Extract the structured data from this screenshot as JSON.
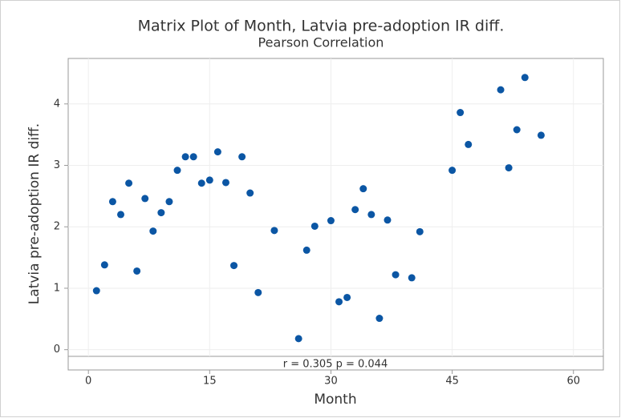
{
  "chart_data": {
    "type": "scatter",
    "title": "Matrix Plot of Month, Latvia pre-adoption IR diff.",
    "subtitle": "Pearson Correlation",
    "x_label": "Month",
    "y_label": "Latvia pre-adoption IR diff.",
    "annotation": "r = 0.305  p = 0.044",
    "color": "#0b56a4",
    "grid": true,
    "x": [
      1,
      2,
      3,
      4,
      5,
      6,
      7,
      8,
      9,
      10,
      11,
      12,
      13,
      14,
      15,
      16,
      17,
      18,
      19,
      20,
      21,
      23,
      26,
      27,
      28,
      30,
      31,
      32,
      33,
      34,
      35,
      36,
      37,
      38,
      40,
      41,
      45,
      46,
      47,
      51,
      52,
      53,
      54,
      56
    ],
    "values": [
      0.96,
      1.38,
      2.41,
      2.2,
      2.71,
      1.28,
      2.46,
      1.93,
      2.23,
      2.41,
      2.92,
      3.14,
      3.14,
      2.71,
      2.76,
      3.22,
      2.72,
      1.37,
      3.14,
      2.55,
      0.93,
      1.94,
      0.18,
      1.62,
      2.01,
      2.1,
      0.78,
      0.85,
      2.28,
      2.62,
      2.2,
      0.51,
      2.11,
      1.22,
      1.17,
      1.92,
      2.92,
      3.86,
      3.34,
      4.23,
      2.96,
      3.58,
      4.43,
      3.49
    ],
    "xlim": [
      -2.5,
      63.7
    ],
    "ylim": [
      -0.33,
      4.74
    ],
    "xticks": [
      0,
      15,
      30,
      45,
      60
    ],
    "yticks": [
      0,
      1,
      2,
      3,
      4
    ]
  }
}
